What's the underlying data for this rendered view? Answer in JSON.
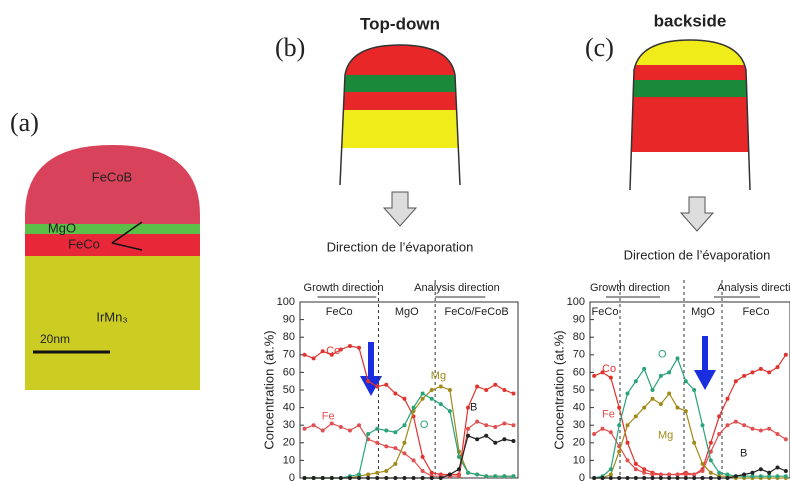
{
  "panel_a": {
    "label": "(a)",
    "layers": [
      "FeCoB",
      "MgO",
      "FeCo",
      "IrMn₃"
    ],
    "scale_bar": "20nm"
  },
  "panel_b": {
    "label": "(b)",
    "tip_title": "Top-down",
    "arrow_caption": "Direction de l’évaporation"
  },
  "panel_c": {
    "label": "(c)",
    "tip_title": "backside",
    "arrow_caption": "Direction de l’évaporation"
  },
  "chart_data": [
    {
      "type": "line",
      "ylabel": "Concentration (at.%)",
      "growth_label": "Growth direction",
      "analysis_label": "Analysis direction",
      "regions": [
        "FeCo",
        "MgO",
        "FeCo/FeCoB"
      ],
      "ylim": [
        0,
        100
      ],
      "yticks": [
        0,
        10,
        20,
        30,
        40,
        50,
        60,
        70,
        80,
        90,
        100
      ],
      "series": [
        {
          "name": "Co",
          "color": "#e0322e",
          "values": [
            70,
            68,
            72,
            70,
            73,
            75,
            74,
            55,
            52,
            53,
            48,
            45,
            35,
            12,
            3,
            2,
            2,
            2,
            40,
            52,
            50,
            53,
            50,
            48
          ]
        },
        {
          "name": "Fe",
          "color": "#e05050",
          "values": [
            28,
            30,
            27,
            31,
            29,
            27,
            30,
            22,
            20,
            18,
            17,
            14,
            10,
            4,
            1,
            1,
            1,
            1,
            28,
            32,
            30,
            29,
            31,
            30
          ]
        },
        {
          "name": "Mg",
          "color": "#a08a1a",
          "values": [
            0,
            0,
            0,
            0,
            0,
            0,
            1,
            2,
            3,
            4,
            8,
            20,
            38,
            45,
            50,
            52,
            50,
            15,
            3,
            2,
            1,
            1,
            1,
            1
          ]
        },
        {
          "name": "O",
          "color": "#2aa37a",
          "values": [
            0,
            0,
            0,
            0,
            0,
            1,
            2,
            25,
            28,
            27,
            26,
            30,
            40,
            48,
            45,
            42,
            38,
            12,
            3,
            2,
            1,
            1,
            1,
            1
          ]
        },
        {
          "name": "B",
          "color": "#222222",
          "values": [
            0,
            0,
            0,
            0,
            0,
            0,
            0,
            0,
            0,
            0,
            0,
            0,
            0,
            0,
            0,
            0,
            2,
            5,
            24,
            22,
            24,
            20,
            22,
            21
          ]
        }
      ]
    },
    {
      "type": "line",
      "ylabel": "Concentration (at.%)",
      "growth_label": "Growth direction",
      "analysis_label": "Analysis direction",
      "regions": [
        "FeCo",
        "MgO",
        "FeCo"
      ],
      "ylim": [
        0,
        100
      ],
      "yticks": [
        0,
        10,
        20,
        30,
        40,
        50,
        60,
        70,
        80,
        90,
        100
      ],
      "series": [
        {
          "name": "Co",
          "color": "#e0322e",
          "values": [
            58,
            60,
            57,
            40,
            20,
            8,
            5,
            3,
            2,
            2,
            2,
            3,
            2,
            5,
            20,
            35,
            45,
            55,
            58,
            60,
            62,
            60,
            63,
            70
          ]
        },
        {
          "name": "Fe",
          "color": "#e05050",
          "values": [
            25,
            28,
            26,
            18,
            10,
            5,
            3,
            2,
            2,
            2,
            2,
            2,
            2,
            4,
            15,
            25,
            30,
            32,
            30,
            28,
            27,
            28,
            25,
            22
          ]
        },
        {
          "name": "Mg",
          "color": "#a08a1a",
          "values": [
            0,
            0,
            2,
            15,
            30,
            35,
            40,
            45,
            42,
            48,
            40,
            38,
            20,
            8,
            3,
            1,
            1,
            0,
            0,
            0,
            0,
            0,
            0,
            0
          ]
        },
        {
          "name": "O",
          "color": "#2aa37a",
          "values": [
            0,
            1,
            5,
            30,
            48,
            55,
            62,
            50,
            58,
            60,
            68,
            55,
            50,
            30,
            10,
            3,
            2,
            1,
            1,
            1,
            1,
            1,
            1,
            1
          ]
        },
        {
          "name": "B",
          "color": "#222222",
          "values": [
            0,
            0,
            0,
            0,
            0,
            0,
            0,
            0,
            0,
            0,
            0,
            0,
            0,
            0,
            0,
            0,
            0,
            1,
            2,
            3,
            5,
            3,
            6,
            4
          ]
        }
      ]
    }
  ]
}
